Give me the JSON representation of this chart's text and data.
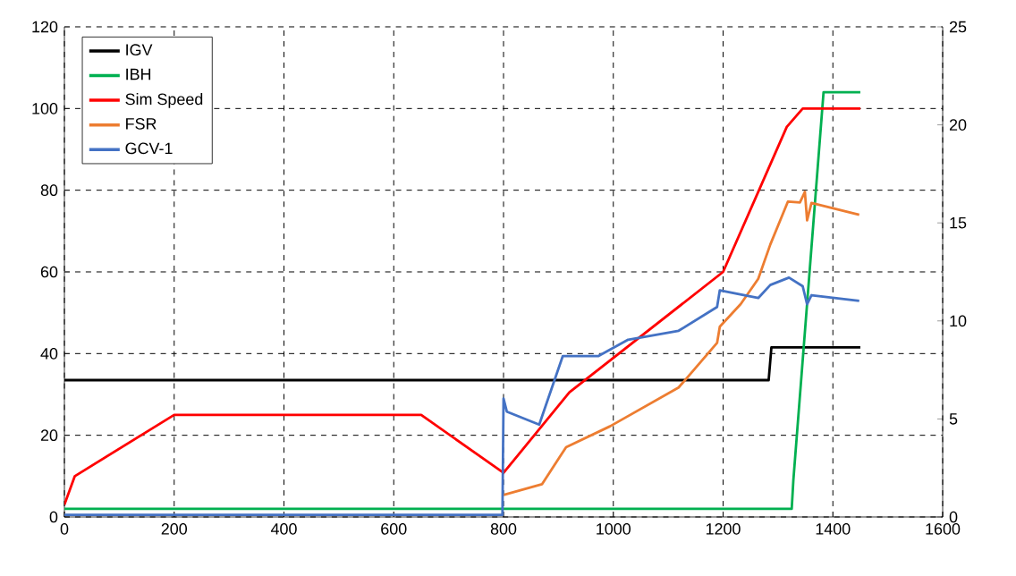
{
  "chart_data": {
    "type": "line",
    "xlim": [
      0,
      1600
    ],
    "xticks": [
      0,
      200,
      400,
      600,
      800,
      1000,
      1200,
      1400,
      1600
    ],
    "ylim": [
      0,
      120
    ],
    "yticks": [
      0,
      20,
      40,
      60,
      80,
      100,
      120
    ],
    "y2lim": [
      0,
      25
    ],
    "y2ticks": [
      0,
      5,
      10,
      15,
      20,
      25
    ],
    "grid": true,
    "legend": "top left",
    "marker": "none",
    "line_style": "solid",
    "series": [
      {
        "name": "IGV",
        "color": "#000000",
        "x": [
          0,
          1283,
          1288,
          1450
        ],
        "values": [
          33.5,
          33.5,
          41.5,
          41.5
        ]
      },
      {
        "name": "IBH",
        "color": "#00b050",
        "x": [
          0,
          1325,
          1328,
          1383,
          1450
        ],
        "values": [
          2,
          2,
          9,
          104,
          104
        ]
      },
      {
        "name": "Sim Speed",
        "color": "#ff0000",
        "x": [
          0,
          19,
          200,
          650,
          800,
          920,
          1200,
          1316,
          1345,
          1450
        ],
        "values": [
          3,
          10,
          25,
          25,
          10.8,
          30.5,
          60,
          95.5,
          100,
          100
        ]
      },
      {
        "name": "FSR",
        "color": "#ed7d31",
        "x": [
          800,
          870,
          914,
          994,
          1119,
          1189,
          1194,
          1232,
          1264,
          1286,
          1318,
          1340,
          1349,
          1353,
          1361,
          1448
        ],
        "values": [
          5.4,
          8,
          17.1,
          22.2,
          31.7,
          42.6,
          46.6,
          52.1,
          58.3,
          66.7,
          77.2,
          77,
          79.6,
          72.6,
          76.9,
          74
        ]
      },
      {
        "name": "GCV-1",
        "color": "#4472c4",
        "x": [
          0,
          798,
          800,
          806,
          865,
          908,
          973,
          1027,
          1119,
          1189,
          1194,
          1264,
          1286,
          1320,
          1345,
          1353,
          1361,
          1448
        ],
        "values": [
          0.5,
          0.5,
          29,
          25.8,
          22.6,
          39.4,
          39.4,
          43.4,
          45.6,
          51.4,
          55.5,
          53.6,
          56.8,
          58.6,
          56.5,
          52.1,
          54.3,
          52.9
        ]
      }
    ]
  }
}
